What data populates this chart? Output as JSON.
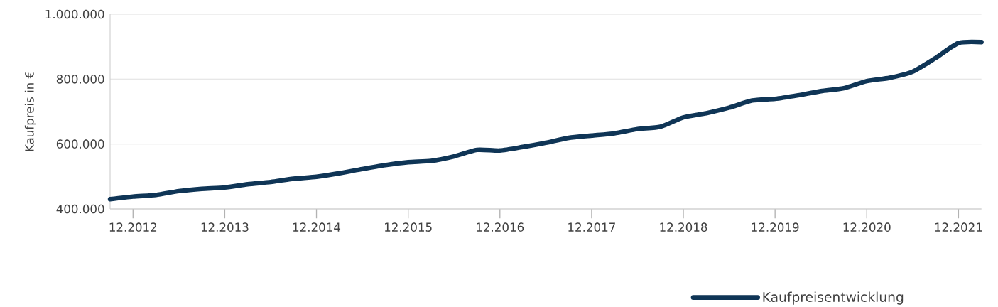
{
  "chart_data": {
    "type": "line",
    "ylabel": "Kaufpreis in €",
    "x": [
      "2012-09",
      "2012-12",
      "2013-03",
      "2013-06",
      "2013-09",
      "2013-12",
      "2014-03",
      "2014-06",
      "2014-09",
      "2014-12",
      "2015-03",
      "2015-06",
      "2015-09",
      "2015-12",
      "2016-03",
      "2016-06",
      "2016-09",
      "2016-12",
      "2017-03",
      "2017-06",
      "2017-09",
      "2017-12",
      "2018-03",
      "2018-06",
      "2018-09",
      "2018-12",
      "2019-03",
      "2019-06",
      "2019-09",
      "2019-12",
      "2020-03",
      "2020-06",
      "2020-09",
      "2020-12",
      "2021-03",
      "2021-06",
      "2021-09",
      "2021-12",
      "2022-03"
    ],
    "series": [
      {
        "name": "Kaufpreisentwicklung",
        "color": "#0f3556",
        "values": [
          430000,
          438000,
          443000,
          455000,
          462000,
          466000,
          476000,
          483000,
          493000,
          499000,
          510000,
          523000,
          535000,
          544000,
          548000,
          562000,
          582000,
          580000,
          591000,
          604000,
          619000,
          626000,
          633000,
          646000,
          653000,
          682000,
          695000,
          712000,
          734000,
          739000,
          750000,
          763000,
          772000,
          794000,
          804000,
          823000,
          865000,
          911000,
          914000
        ]
      }
    ],
    "xlim": [
      "2012-09",
      "2022-03"
    ],
    "ylim": [
      400000,
      1000000
    ],
    "xticks": [
      {
        "value": "2012-12",
        "label": "12.2012"
      },
      {
        "value": "2013-12",
        "label": "12.2013"
      },
      {
        "value": "2014-12",
        "label": "12.2014"
      },
      {
        "value": "2015-12",
        "label": "12.2015"
      },
      {
        "value": "2016-12",
        "label": "12.2016"
      },
      {
        "value": "2017-12",
        "label": "12.2017"
      },
      {
        "value": "2018-12",
        "label": "12.2018"
      },
      {
        "value": "2019-12",
        "label": "12.2019"
      },
      {
        "value": "2020-12",
        "label": "12.2020"
      },
      {
        "value": "2021-12",
        "label": "12.2021"
      }
    ],
    "yticks": [
      {
        "value": 400000,
        "label": "400.000"
      },
      {
        "value": 600000,
        "label": "600.000"
      },
      {
        "value": 800000,
        "label": "800.000"
      },
      {
        "value": 1000000,
        "label": "1.000.000"
      }
    ],
    "grid": "y",
    "legend": "bottom"
  }
}
